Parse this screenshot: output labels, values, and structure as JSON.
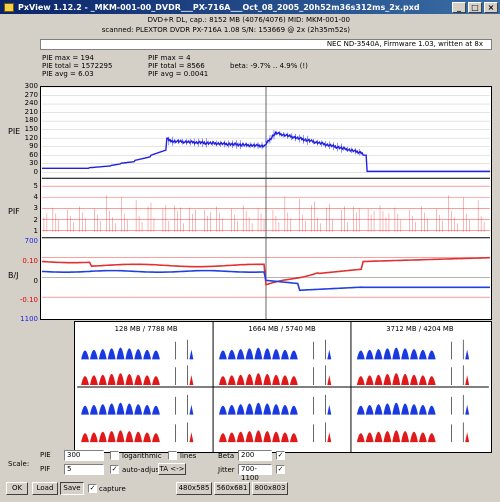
{
  "window": {
    "title": "PxView 1.12.2 - _MKM-001-00_DVDR___PX-716A___Oct_08_2005_20h52m36s312ms_2x.pxd",
    "min_label": "_",
    "max_label": "□",
    "close_label": "×"
  },
  "info": {
    "line1": "DVD+R DL, cap.: 8152 MB (4076/4076) MID: MKM-001-00",
    "line2": "scanned: PLEXTOR DVDR  PX-716A 1.08 S/N: 153669 @ 2x (2h35m52s)"
  },
  "writer": "NEC ND-3540A, Firmware 1.03, written at 8x",
  "stats": {
    "pie_max": "PIE max = 194",
    "pie_total": "PIE total = 1572295",
    "pie_avg": "PIE avg = 6.03",
    "pif_max": "PIF max = 4",
    "pif_total": "PIF total = 8566",
    "pif_avg": "PIF avg = 0.0041",
    "beta": "beta: -9.7% .. 4.9% (!)"
  },
  "sections": {
    "pie": "PIE",
    "pif": "PIF",
    "bj": "B/J"
  },
  "pie_ticks": [
    "300",
    "270",
    "240",
    "210",
    "180",
    "150",
    "120",
    "90",
    "60",
    "30",
    "0"
  ],
  "pif_ticks": [
    "5",
    "4",
    "3",
    "2",
    "1"
  ],
  "bj_ticks": {
    "top_j": "700",
    "b_top": "0.10",
    "b_zero": "0",
    "b_bottom": "-0.10",
    "bottom_j": "1100"
  },
  "colors": {
    "pie": "#2020e0",
    "pif": "#e00000",
    "beta": "#e03030",
    "jitter": "#2040e0",
    "grid_red": "#ff6060"
  },
  "spectrum_titles": [
    "128 MB / 7788 MB",
    "1664 MB / 5740 MB",
    "3712 MB / 4204 MB"
  ],
  "controls": {
    "scale_label": "Scale:",
    "pie_label": "PIE",
    "pie_value": "300",
    "pif_label": "PIF",
    "pif_value": "5",
    "log_label": "logarithmic",
    "lines_label": "lines",
    "autoadjust_label": "auto-adjust",
    "ta_label": "TA <->",
    "beta_label": "Beta",
    "beta_value": "200",
    "jitter_label": "Jitter",
    "jitter_value": "700-1100",
    "check": "✓"
  },
  "buttons": {
    "ok": "OK",
    "load": "Load",
    "save": "Save",
    "capture": "capture",
    "res1": "480x585",
    "res2": "560x681",
    "res3": "800x803"
  }
}
